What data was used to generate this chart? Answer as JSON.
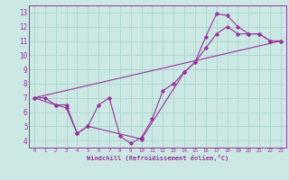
{
  "xlabel": "Windchill (Refroidissement éolien,°C)",
  "bg_color": "#cce8e4",
  "grid_color": "#aad4d0",
  "line_color": "#993399",
  "xlim": [
    -0.5,
    23.5
  ],
  "ylim": [
    3.5,
    13.5
  ],
  "yticks": [
    4,
    5,
    6,
    7,
    8,
    9,
    10,
    11,
    12,
    13
  ],
  "xticks": [
    0,
    1,
    2,
    3,
    4,
    5,
    6,
    7,
    8,
    9,
    10,
    11,
    12,
    13,
    14,
    15,
    16,
    17,
    18,
    19,
    20,
    21,
    22,
    23
  ],
  "line1_x": [
    0,
    1,
    2,
    3,
    4,
    5,
    6,
    7,
    8,
    9,
    10,
    11,
    12,
    13,
    14,
    15,
    16,
    17,
    18,
    19,
    20,
    21,
    22,
    23
  ],
  "line1_y": [
    7.0,
    7.0,
    6.5,
    6.5,
    4.5,
    5.0,
    6.5,
    7.0,
    4.3,
    3.8,
    4.2,
    5.5,
    7.5,
    8.0,
    8.8,
    9.5,
    10.5,
    11.5,
    12.0,
    11.5,
    11.5,
    11.5,
    11.0,
    11.0
  ],
  "line2_x": [
    0,
    2,
    3,
    4,
    5,
    10,
    14,
    15,
    16,
    17,
    18,
    19,
    20,
    21,
    22,
    23
  ],
  "line2_y": [
    7.0,
    6.5,
    6.3,
    4.5,
    5.0,
    4.1,
    8.8,
    9.5,
    11.3,
    12.9,
    12.8,
    12.0,
    11.5,
    11.5,
    11.0,
    11.0
  ],
  "line3_x": [
    0,
    23
  ],
  "line3_y": [
    7.0,
    11.0
  ]
}
